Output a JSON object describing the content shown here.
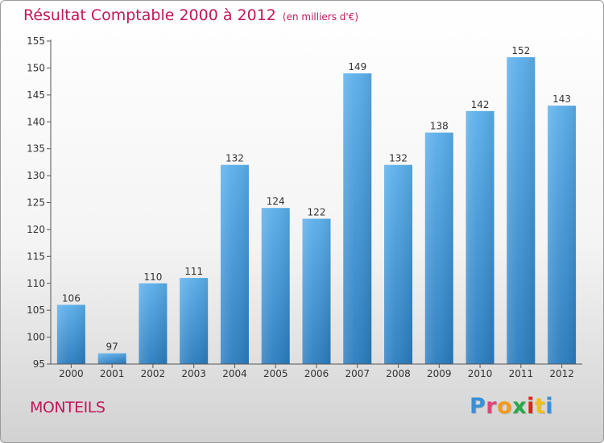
{
  "header": {
    "title": "Résultat Comptable 2000 à 2012",
    "subtitle": "(en milliers d'€)"
  },
  "footer": {
    "town": "MONTEILS",
    "logo": "Proxiti"
  },
  "colors": {
    "title": "#c0185c",
    "bar_top": "#5aaeea",
    "bar_bottom": "#2a7cbf",
    "logo_letters": [
      "#3a8fd6",
      "#e0457b",
      "#f29b1d",
      "#2aa84a",
      "#e2231a",
      "#f2c018",
      "#3a8fd6"
    ]
  },
  "chart_data": {
    "type": "bar",
    "title": "Résultat Comptable 2000 à 2012",
    "subtitle": "(en milliers d'€)",
    "xlabel": "",
    "ylabel": "",
    "categories": [
      "2000",
      "2001",
      "2002",
      "2003",
      "2004",
      "2005",
      "2006",
      "2007",
      "2008",
      "2009",
      "2010",
      "2011",
      "2012"
    ],
    "values": [
      106,
      97,
      110,
      111,
      132,
      124,
      122,
      149,
      132,
      138,
      142,
      152,
      143
    ],
    "ylim": [
      95,
      155
    ],
    "yticks": [
      95,
      100,
      105,
      110,
      115,
      120,
      125,
      130,
      135,
      140,
      145,
      150,
      155
    ],
    "grid": false,
    "legend": "none"
  }
}
